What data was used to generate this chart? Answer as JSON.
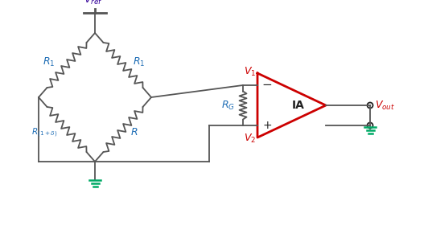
{
  "blue": "#1E6DB5",
  "red": "#CC0000",
  "green": "#00AA66",
  "wire": "#555555",
  "dark": "#222222",
  "purple": "#330099",
  "bg": "#FFFFFF",
  "figsize": [
    5.32,
    2.96
  ],
  "dpi": 100
}
